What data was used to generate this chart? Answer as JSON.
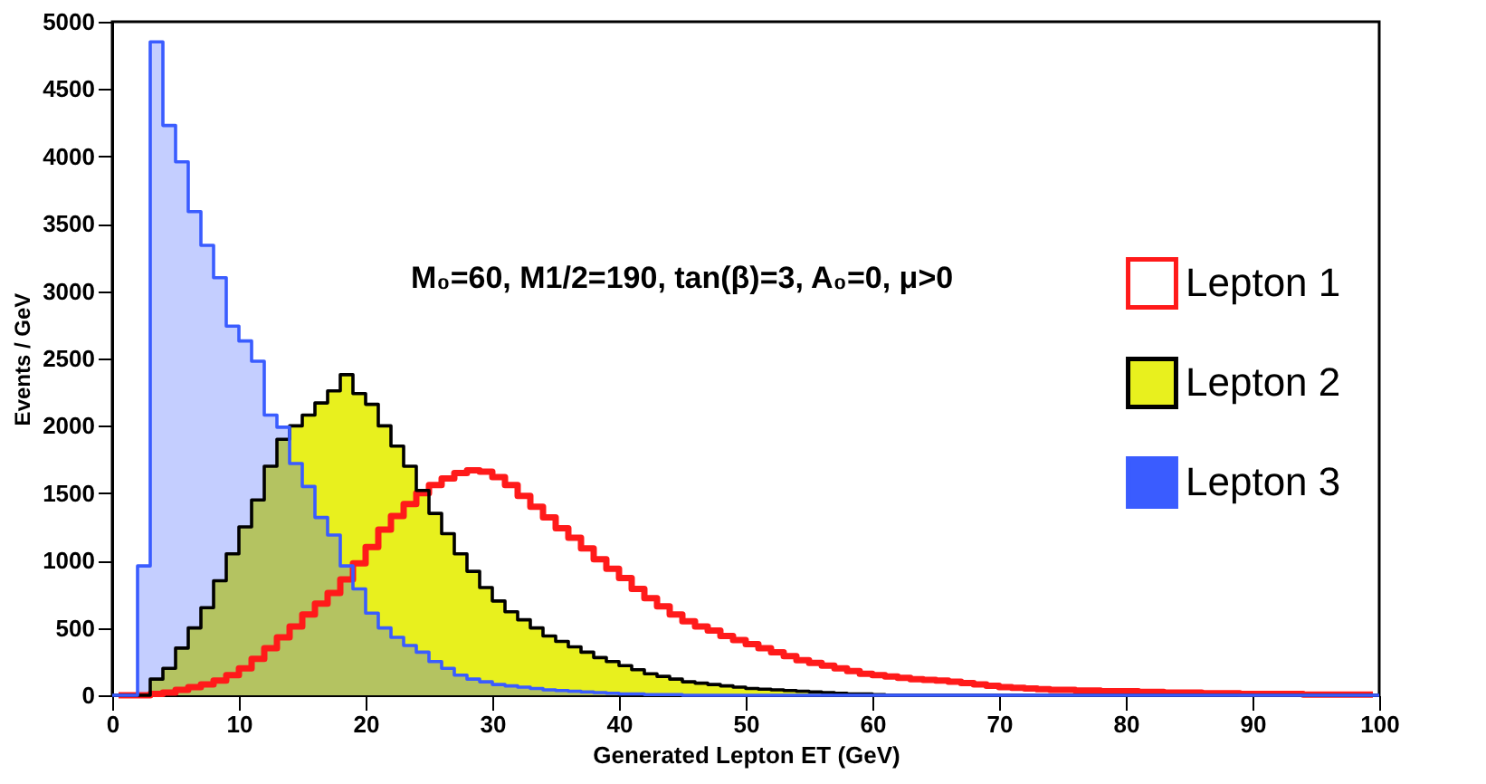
{
  "chart_data": {
    "type": "histogram",
    "xlabel": "Generated Lepton ET (GeV)",
    "ylabel": "Events / GeV",
    "annotations": [
      "M₀=60, M1/2=190, tan(β)=3, A₀=0, μ>0"
    ],
    "bins": [
      0,
      1,
      2,
      3,
      4,
      5,
      6,
      7,
      8,
      9,
      10,
      11,
      12,
      13,
      14,
      15,
      16,
      17,
      18,
      19,
      20,
      21,
      22,
      23,
      24,
      25,
      26,
      27,
      28,
      29,
      30,
      31,
      32,
      33,
      34,
      35,
      36,
      37,
      38,
      39,
      40,
      41,
      42,
      43,
      44,
      45,
      46,
      47,
      48,
      49,
      50,
      51,
      52,
      53,
      54,
      55,
      56,
      57,
      58,
      59,
      60,
      61,
      62,
      63,
      64,
      65,
      66,
      67,
      68,
      69,
      70,
      71,
      72,
      73,
      74,
      75,
      76,
      77,
      78,
      79,
      80,
      81,
      82,
      83,
      84,
      85,
      86,
      87,
      88,
      89,
      90,
      91,
      92,
      93,
      94,
      95,
      96,
      97,
      98,
      99,
      100
    ],
    "series": [
      {
        "name": "Lepton 1",
        "type": "line",
        "color": "#ff1a1a",
        "x": [
          0.5,
          1.5,
          2.5,
          3.5,
          4.5,
          5.5,
          6.5,
          7.5,
          8.5,
          9.5,
          10.5,
          11.5,
          12.5,
          13.5,
          14.5,
          15.5,
          16.5,
          17.5,
          18.5,
          19.5,
          20.5,
          21.5,
          22.5,
          23.5,
          24.5,
          25.5,
          26.5,
          27.5,
          28.5,
          29.5,
          30.5,
          31.5,
          32.5,
          33.5,
          34.5,
          35.5,
          36.5,
          37.5,
          38.5,
          39.5,
          40.5,
          41.5,
          42.5,
          43.5,
          44.5,
          45.5,
          46.5,
          47.5,
          48.5,
          49.5,
          50.5,
          51.5,
          52.5,
          53.5,
          54.5,
          55.5,
          56.5,
          57.5,
          58.5,
          59.5,
          60.5,
          61.5,
          62.5,
          63.5,
          64.5,
          65.5,
          66.5,
          67.5,
          68.5,
          69.5,
          70.5,
          71.5,
          72.5,
          73.5,
          74.5,
          75.5,
          76.5,
          77.5,
          78.5,
          79.5,
          80.5,
          81.5,
          82.5,
          83.5,
          84.5,
          85.5,
          86.5,
          87.5,
          88.5,
          89.5,
          90.5,
          91.5,
          92.5,
          93.5,
          94.5,
          95.5,
          96.5,
          97.5,
          98.5,
          99.5
        ],
        "values": [
          0,
          0,
          0,
          10,
          20,
          40,
          60,
          80,
          110,
          150,
          200,
          270,
          350,
          430,
          510,
          600,
          680,
          760,
          860,
          980,
          1100,
          1230,
          1330,
          1420,
          1500,
          1560,
          1610,
          1650,
          1670,
          1660,
          1620,
          1560,
          1480,
          1400,
          1320,
          1240,
          1170,
          1090,
          1010,
          940,
          870,
          790,
          720,
          660,
          600,
          550,
          510,
          480,
          440,
          410,
          380,
          350,
          320,
          290,
          260,
          240,
          220,
          200,
          180,
          160,
          150,
          140,
          130,
          120,
          115,
          110,
          100,
          90,
          80,
          70,
          60,
          55,
          50,
          45,
          40,
          40,
          35,
          35,
          30,
          30,
          30,
          25,
          25,
          20,
          20,
          20,
          15,
          15,
          15,
          10,
          10,
          10,
          10,
          10,
          5,
          5,
          5,
          5,
          5,
          5
        ]
      },
      {
        "name": "Lepton 2",
        "color": "#e8f01e",
        "values": [
          0,
          0,
          0,
          120,
          200,
          350,
          500,
          650,
          850,
          1050,
          1250,
          1450,
          1700,
          1900,
          2000,
          2080,
          2170,
          2260,
          2380,
          2240,
          2160,
          2000,
          1850,
          1700,
          1520,
          1350,
          1200,
          1050,
          920,
          800,
          700,
          620,
          560,
          500,
          440,
          400,
          360,
          320,
          280,
          250,
          220,
          190,
          160,
          140,
          120,
          100,
          90,
          80,
          70,
          60,
          50,
          45,
          40,
          35,
          30,
          25,
          20,
          15,
          10,
          10,
          5,
          0,
          0,
          0,
          0,
          0,
          0,
          0,
          0,
          0,
          0,
          0,
          0,
          0,
          0,
          0,
          0,
          0,
          0,
          0,
          0,
          0,
          0,
          0,
          0,
          0,
          0,
          0,
          0,
          0,
          0,
          0,
          0,
          0,
          0,
          0,
          0,
          0,
          0,
          0
        ]
      },
      {
        "name": "Lepton 3",
        "color": "#3a5cff",
        "values": [
          0,
          0,
          960,
          4850,
          4230,
          3960,
          3590,
          3340,
          3100,
          2740,
          2630,
          2480,
          2080,
          1990,
          1720,
          1550,
          1320,
          1190,
          960,
          790,
          610,
          500,
          430,
          370,
          320,
          250,
          200,
          150,
          120,
          100,
          80,
          70,
          60,
          50,
          40,
          35,
          30,
          25,
          20,
          15,
          10,
          10,
          5,
          5,
          5,
          0,
          0,
          0,
          0,
          0,
          0,
          0,
          0,
          0,
          0,
          0,
          0,
          0,
          0,
          0,
          0,
          0,
          0,
          0,
          0,
          0,
          0,
          0,
          0,
          0,
          0,
          0,
          0,
          0,
          0,
          0,
          0,
          0,
          0,
          0,
          0,
          0,
          0,
          0,
          0,
          0,
          0,
          0,
          0,
          0,
          0,
          0,
          0,
          0,
          0,
          0,
          0,
          0,
          0,
          0
        ]
      }
    ],
    "xlim": [
      0,
      100
    ],
    "xticks": [
      0,
      10,
      20,
      30,
      40,
      50,
      60,
      70,
      80,
      90,
      100
    ],
    "ylim": [
      0,
      5000
    ],
    "yticks": [
      0,
      500,
      1000,
      1500,
      2000,
      2500,
      3000,
      3500,
      4000,
      4500,
      5000
    ],
    "grid": false,
    "legend": "right"
  }
}
